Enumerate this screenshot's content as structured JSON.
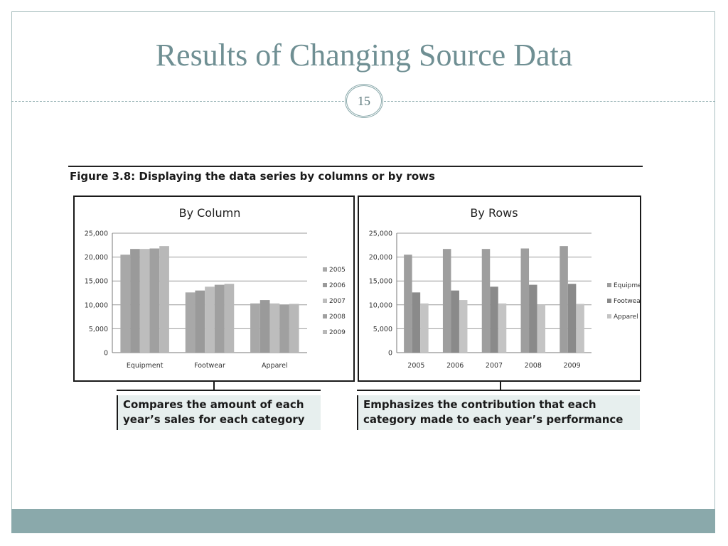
{
  "slide": {
    "title": "Results of Changing Source Data",
    "page_number": "15",
    "colors": {
      "accent": "#8aa9ab",
      "title": "#6f8f93"
    }
  },
  "figure": {
    "title": "Figure 3.8: Displaying the data series by columns or by rows"
  },
  "captions": {
    "left": [
      "Compares the amount of each",
      "year’s sales for each category"
    ],
    "right": [
      "Emphasizes the contribution that each",
      "category made to each year’s performance"
    ]
  },
  "chart_data": [
    {
      "type": "bar",
      "title": "By Column",
      "categories": [
        "Equipment",
        "Footwear",
        "Apparel"
      ],
      "series": [
        {
          "name": "2005",
          "values": [
            20500,
            12600,
            10300
          ],
          "color": "#a8a8a8"
        },
        {
          "name": "2006",
          "values": [
            21700,
            13000,
            11000
          ],
          "color": "#9a9a9a"
        },
        {
          "name": "2007",
          "values": [
            21700,
            13800,
            10300
          ],
          "color": "#bdbdbd"
        },
        {
          "name": "2008",
          "values": [
            21800,
            14200,
            10000
          ],
          "color": "#a0a0a0"
        },
        {
          "name": "2009",
          "values": [
            22300,
            14400,
            10200
          ],
          "color": "#b8b8b8"
        }
      ],
      "ylim": [
        0,
        25000
      ],
      "yticks": [
        "0",
        "5,000",
        "10,000",
        "15,000",
        "20,000",
        "25,000"
      ],
      "grid": true,
      "legend": "right"
    },
    {
      "type": "bar",
      "title": "By Rows",
      "categories": [
        "2005",
        "2006",
        "2007",
        "2008",
        "2009"
      ],
      "series": [
        {
          "name": "Equipment",
          "values": [
            20500,
            21700,
            21700,
            21800,
            22300
          ],
          "color": "#9e9e9e"
        },
        {
          "name": "Footwear",
          "values": [
            12600,
            13000,
            13800,
            14200,
            14400
          ],
          "color": "#8a8a8a"
        },
        {
          "name": "Apparel",
          "values": [
            10300,
            11000,
            10300,
            10000,
            10200
          ],
          "color": "#c4c4c4"
        }
      ],
      "ylim": [
        0,
        25000
      ],
      "yticks": [
        "0",
        "5,000",
        "10,000",
        "15,000",
        "20,000",
        "25,000"
      ],
      "grid": true,
      "legend": "right"
    }
  ]
}
